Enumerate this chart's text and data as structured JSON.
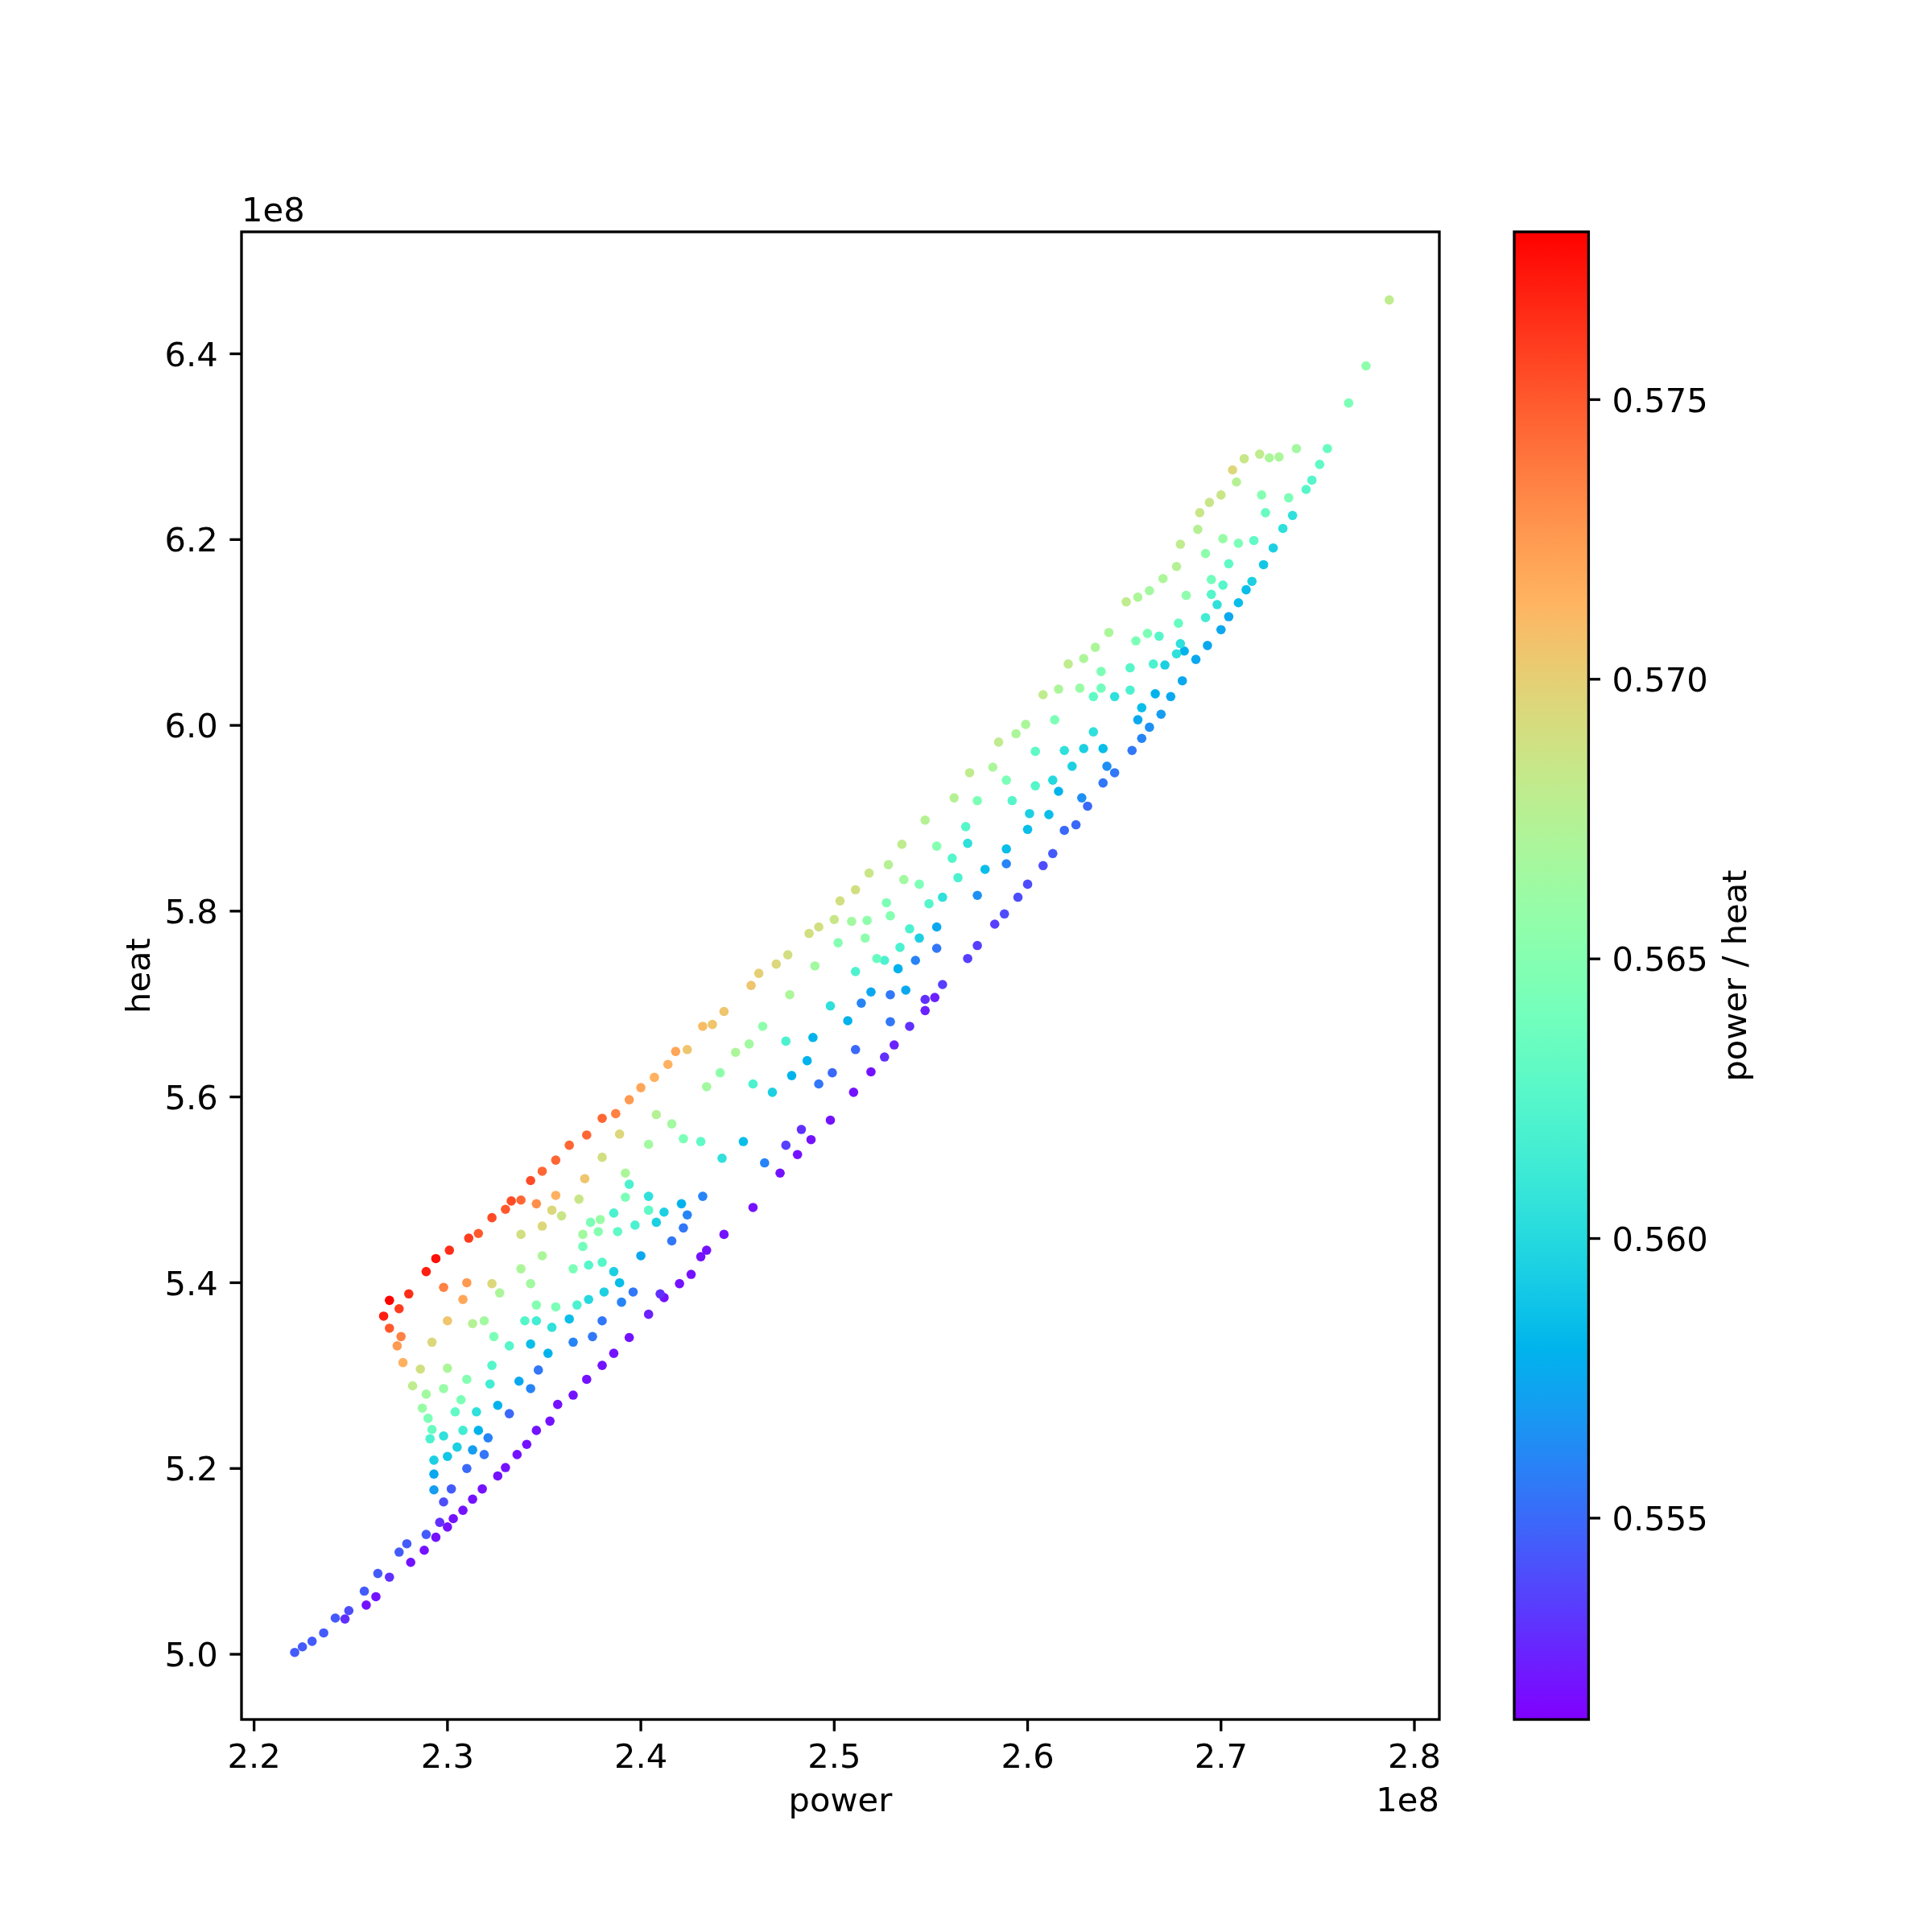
{
  "chart_data": {
    "type": "scatter",
    "xlabel": "power",
    "ylabel": "heat",
    "clabel": "power / heat",
    "annotations": [
      "1e8",
      "1e8"
    ],
    "marker": "circle",
    "xlim": [
      2.1935,
      2.8129
    ],
    "ylim": [
      4.9298,
      6.5313
    ],
    "clim": [
      0.5514,
      0.578
    ],
    "xticks": [
      2.2,
      2.3,
      2.4,
      2.5,
      2.6,
      2.7,
      2.8
    ],
    "yticks": [
      {
        "value": 5,
        "label": "5.0"
      },
      5.2,
      5.4,
      5.6,
      5.8,
      {
        "value": 6,
        "label": "6.0"
      },
      6.2,
      6.4
    ],
    "cticks": [
      0.555,
      {
        "value": 0.56,
        "label": "0.560"
      },
      0.565,
      {
        "value": 0.57,
        "label": "0.570"
      },
      0.575
    ],
    "x": [
      2.221,
      2.225,
      2.23,
      2.236,
      2.242,
      2.247,
      2.249,
      2.257,
      2.258,
      2.263,
      2.264,
      2.27,
      2.275,
      2.281,
      2.279,
      2.288,
      2.289,
      2.294,
      2.3,
      2.296,
      2.298,
      2.293,
      2.293,
      2.293,
      2.291,
      2.292,
      2.29,
      2.287,
      2.289,
      2.282,
      2.286,
      2.277,
      2.274,
      2.276,
      2.27,
      2.267,
      2.27,
      2.275,
      2.28,
      2.289,
      2.294,
      2.301,
      2.311,
      2.316,
      2.323,
      2.333,
      2.338,
      2.346,
      2.356,
      2.298,
      2.31,
      2.323,
      2.308,
      2.3,
      2.292,
      2.313,
      2.327,
      2.338,
      2.343,
      2.338,
      2.349,
      2.359,
      2.37,
      2.379,
      2.392,
      2.404,
      2.421,
      2.434,
      2.426,
      2.42,
      2.412,
      2.404,
      2.394,
      2.386,
      2.38,
      2.372,
      2.365,
      2.357,
      2.353,
      2.346,
      2.341,
      2.336,
      2.33,
      2.326,
      2.318,
      2.313,
      2.308,
      2.303,
      2.302,
      2.3,
      2.305,
      2.313,
      2.31,
      2.319,
      2.321,
      2.298,
      2.308,
      2.316,
      2.332,
      2.343,
      2.304,
      2.315,
      2.326,
      2.307,
      2.322,
      2.337,
      2.298,
      2.31,
      2.323,
      2.347,
      2.3,
      2.324,
      2.332,
      2.343,
      2.352,
      2.365,
      2.375,
      2.319,
      2.34,
      2.346,
      2.354,
      2.363,
      2.38,
      2.346,
      2.356,
      2.367,
      2.373,
      2.381,
      2.39,
      2.396,
      2.349,
      2.365,
      2.373,
      2.386,
      2.4,
      2.416,
      2.378,
      2.388,
      2.397,
      2.408,
      2.424,
      2.33,
      2.343,
      2.349,
      2.356,
      2.363,
      2.372,
      2.38,
      2.387,
      2.394,
      2.4,
      2.407,
      2.414,
      2.418,
      2.424,
      2.432,
      2.437,
      2.443,
      2.457,
      2.461,
      2.47,
      2.476,
      2.487,
      2.492,
      2.5,
      2.503,
      2.511,
      2.389,
      2.392,
      2.408,
      2.422,
      2.431,
      2.442,
      2.453,
      2.464,
      2.475,
      2.483,
      2.481,
      2.498,
      2.51,
      2.519,
      2.526,
      2.531,
      2.539,
      2.547,
      2.556,
      2.488,
      2.472,
      2.458,
      2.443,
      2.431,
      2.422,
      2.432,
      2.412,
      2.404,
      2.394,
      2.386,
      2.374,
      2.37,
      2.38,
      2.389,
      2.41,
      2.354,
      2.368,
      2.371,
      2.38,
      2.404,
      2.416,
      2.434,
      2.441,
      2.449,
      2.456,
      2.463,
      2.477,
      2.49,
      2.502,
      2.517,
      2.527,
      2.458,
      2.468,
      2.478,
      2.486,
      2.492,
      2.499,
      2.475,
      2.489,
      2.511,
      2.498,
      2.507,
      2.514,
      2.519,
      2.529,
      2.511,
      2.526,
      2.533,
      2.542,
      2.553,
      2.553,
      2.539,
      2.556,
      2.518,
      2.528,
      2.535,
      2.547,
      2.562,
      2.57,
      2.582,
      2.585,
      2.594,
      2.599,
      2.608,
      2.616,
      2.621,
      2.629,
      2.635,
      2.642,
      2.547,
      2.552,
      2.569,
      2.574,
      2.583,
      2.588,
      2.595,
      2.6,
      2.608,
      2.613,
      2.619,
      2.625,
      2.631,
      2.639,
      2.645,
      2.654,
      2.659,
      2.663,
      2.669,
      2.674,
      2.68,
      2.687,
      2.693,
      2.509,
      2.516,
      2.522,
      2.537,
      2.529,
      2.534,
      2.544,
      2.529,
      2.536,
      2.544,
      2.549,
      2.574,
      2.564,
      2.578,
      2.589,
      2.553,
      2.561,
      2.569,
      2.568,
      2.589,
      2.6,
      2.611,
      2.574,
      2.592,
      2.601,
      2.616,
      2.628,
      2.589,
      2.604,
      2.613,
      2.623,
      2.641,
      2.604,
      2.619,
      2.629,
      2.639,
      2.614,
      2.634,
      2.657,
      2.634,
      2.645,
      2.666,
      2.638,
      2.653,
      2.671,
      2.681,
      2.656,
      2.787,
      2.775,
      2.766,
      2.755,
      2.751,
      2.747,
      2.744,
      2.737,
      2.732,
      2.727,
      2.722,
      2.716,
      2.713,
      2.709,
      2.704,
      2.7,
      2.739,
      2.73,
      2.725,
      2.72,
      2.712,
      2.706,
      2.708,
      2.7,
      2.694,
      2.689,
      2.688,
      2.679,
      2.677,
      2.67,
      2.663,
      2.657,
      2.651,
      2.735,
      2.721,
      2.723,
      2.717,
      2.709,
      2.701,
      2.704,
      2.692,
      2.701,
      2.695,
      2.682,
      2.695,
      2.698,
      2.692,
      2.678,
      2.662,
      2.668,
      2.679,
      2.677,
      2.665,
      2.638,
      2.627,
      2.653,
      2.659
    ],
    "values": [
      5.002,
      5.008,
      5.014,
      5.023,
      5.039,
      5.038,
      5.047,
      5.068,
      5.053,
      5.062,
      5.087,
      5.083,
      5.11,
      5.099,
      5.119,
      5.112,
      5.129,
      5.126,
      5.137,
      5.142,
      5.164,
      5.177,
      5.194,
      5.209,
      5.232,
      5.242,
      5.254,
      5.265,
      5.28,
      5.289,
      5.307,
      5.314,
      5.332,
      5.342,
      5.351,
      5.364,
      5.381,
      5.372,
      5.388,
      5.412,
      5.426,
      5.435,
      5.448,
      5.453,
      5.47,
      5.488,
      5.489,
      5.485,
      5.494,
      5.395,
      5.4,
      5.399,
      5.382,
      5.359,
      5.336,
      5.356,
      5.389,
      5.415,
      5.399,
      5.452,
      5.461,
      5.472,
      5.452,
      5.468,
      5.492,
      5.478,
      5.485,
      5.435,
      5.409,
      5.399,
      5.384,
      5.366,
      5.341,
      5.324,
      5.311,
      5.296,
      5.279,
      5.269,
      5.251,
      5.241,
      5.226,
      5.215,
      5.201,
      5.192,
      5.178,
      5.167,
      5.155,
      5.146,
      5.178,
      5.213,
      5.223,
      5.22,
      5.2,
      5.215,
      5.233,
      5.235,
      5.241,
      5.241,
      5.259,
      5.286,
      5.261,
      5.261,
      5.268,
      5.274,
      5.291,
      5.294,
      5.286,
      5.296,
      5.311,
      5.306,
      5.308,
      5.342,
      5.332,
      5.334,
      5.324,
      5.336,
      5.342,
      5.359,
      5.359,
      5.359,
      5.352,
      5.361,
      5.359,
      5.376,
      5.374,
      5.376,
      5.382,
      5.39,
      5.379,
      5.39,
      5.429,
      5.415,
      5.419,
      5.412,
      5.429,
      5.445,
      5.455,
      5.455,
      5.462,
      5.465,
      5.473,
      5.479,
      5.51,
      5.52,
      5.532,
      5.548,
      5.559,
      5.577,
      5.582,
      5.597,
      5.61,
      5.621,
      5.635,
      5.649,
      5.651,
      5.676,
      5.678,
      5.692,
      5.72,
      5.733,
      5.743,
      5.753,
      5.776,
      5.783,
      5.791,
      5.811,
      5.823,
      5.56,
      5.518,
      5.581,
      5.555,
      5.552,
      5.534,
      5.552,
      5.529,
      5.548,
      5.565,
      5.538,
      5.575,
      5.605,
      5.627,
      5.643,
      5.656,
      5.676,
      5.705,
      5.721,
      5.554,
      5.518,
      5.481,
      5.452,
      5.428,
      5.459,
      5.493,
      5.476,
      5.493,
      5.506,
      5.475,
      5.465,
      5.439,
      5.422,
      5.4,
      5.388,
      5.478,
      5.49,
      5.512,
      5.535,
      5.549,
      5.571,
      5.611,
      5.626,
      5.648,
      5.657,
      5.676,
      5.71,
      5.741,
      5.766,
      5.79,
      5.809,
      5.614,
      5.605,
      5.623,
      5.639,
      5.614,
      5.626,
      5.66,
      5.664,
      5.651,
      5.698,
      5.682,
      5.701,
      5.713,
      5.71,
      5.735,
      5.747,
      5.738,
      5.747,
      5.76,
      5.783,
      5.781,
      5.815,
      5.841,
      5.85,
      5.872,
      5.898,
      5.922,
      5.949,
      5.955,
      5.982,
      5.991,
      6.001,
      6.033,
      6.039,
      6.066,
      6.072,
      6.084,
      6.1,
      5.693,
      5.707,
      5.749,
      5.763,
      5.786,
      5.797,
      5.815,
      5.829,
      5.849,
      5.862,
      5.887,
      5.893,
      5.913,
      5.938,
      5.949,
      5.973,
      5.986,
      5.998,
      6.012,
      6.031,
      6.048,
      6.071,
      6.086,
      5.789,
      5.771,
      5.749,
      5.715,
      5.681,
      5.761,
      5.771,
      5.795,
      5.834,
      5.829,
      5.808,
      5.817,
      5.836,
      5.845,
      5.851,
      5.87,
      5.857,
      5.873,
      5.891,
      5.867,
      5.888,
      5.904,
      5.919,
      5.919,
      5.905,
      5.929,
      5.922,
      5.941,
      5.935,
      5.941,
      5.956,
      5.956,
      5.972,
      5.973,
      5.975,
      5.975,
      6.006,
      5.993,
      6.006,
      6.031,
      6.031,
      6.034,
      6.058,
      6.062,
      6.065,
      6.08,
      6.091,
      6.458,
      6.387,
      6.347,
      6.298,
      6.281,
      6.264,
      6.254,
      6.226,
      6.212,
      6.191,
      6.173,
      6.155,
      6.146,
      6.132,
      6.117,
      6.103,
      6.298,
      6.289,
      6.288,
      6.292,
      6.287,
      6.275,
      6.262,
      6.248,
      6.24,
      6.229,
      6.211,
      6.195,
      6.171,
      6.158,
      6.145,
      6.138,
      6.133,
      6.245,
      6.248,
      6.229,
      6.199,
      6.196,
      6.201,
      6.174,
      6.185,
      6.151,
      6.157,
      6.14,
      6.141,
      6.13,
      6.116,
      6.11,
      6.099,
      6.096,
      6.088,
      6.077,
      6.066,
      6.04,
      6.04,
      6.038,
      6.019
    ],
    "cvalues": [
      0.5545,
      0.5545,
      0.5545,
      0.5545,
      0.5545,
      0.553,
      0.554,
      0.5545,
      0.552,
      0.552,
      0.5545,
      0.553,
      0.5545,
      0.552,
      0.5545,
      0.552,
      0.5545,
      0.552,
      0.552,
      0.553,
      0.554,
      0.557,
      0.5575,
      0.5595,
      0.562,
      0.5635,
      0.5645,
      0.566,
      0.5665,
      0.568,
      0.569,
      0.5715,
      0.5725,
      0.5735,
      0.575,
      0.577,
      0.578,
      0.576,
      0.5765,
      0.577,
      0.5775,
      0.5765,
      0.576,
      0.575,
      0.5755,
      0.5755,
      0.5745,
      0.573,
      0.5715,
      0.5735,
      0.5725,
      0.5695,
      0.572,
      0.5705,
      0.5695,
      0.5675,
      0.567,
      0.567,
      0.5665,
      0.569,
      0.5695,
      0.5685,
      0.5665,
      0.566,
      0.5645,
      0.563,
      0.558,
      0.552,
      0.552,
      0.552,
      0.552,
      0.5525,
      0.552,
      0.552,
      0.552,
      0.552,
      0.552,
      0.552,
      0.552,
      0.552,
      0.552,
      0.552,
      0.552,
      0.552,
      0.552,
      0.552,
      0.552,
      0.552,
      0.5545,
      0.559,
      0.5595,
      0.557,
      0.555,
      0.5555,
      0.556,
      0.5605,
      0.5615,
      0.558,
      0.555,
      0.556,
      0.563,
      0.5605,
      0.558,
      0.5645,
      0.5615,
      0.5575,
      0.566,
      0.565,
      0.5625,
      0.5555,
      0.567,
      0.5645,
      0.5625,
      0.5585,
      0.558,
      0.556,
      0.5555,
      0.5665,
      0.5625,
      0.5615,
      0.5605,
      0.5585,
      0.5555,
      0.565,
      0.5645,
      0.562,
      0.56,
      0.5595,
      0.556,
      0.5555,
      0.567,
      0.5645,
      0.5625,
      0.5595,
      0.5575,
      0.5555,
      0.565,
      0.563,
      0.562,
      0.5595,
      0.556,
      0.575,
      0.5755,
      0.5745,
      0.5745,
      0.5745,
      0.5745,
      0.5745,
      0.5735,
      0.5725,
      0.572,
      0.5715,
      0.5715,
      0.572,
      0.5705,
      0.571,
      0.5705,
      0.5705,
      0.5705,
      0.57,
      0.5695,
      0.569,
      0.569,
      0.569,
      0.5685,
      0.569,
      0.569,
      0.5695,
      0.567,
      0.5675,
      0.5645,
      0.563,
      0.5605,
      0.5585,
      0.556,
      0.5535,
      0.553,
      0.552,
      0.552,
      0.552,
      0.552,
      0.553,
      0.5525,
      0.553,
      0.553,
      0.5535,
      0.552,
      0.552,
      0.552,
      0.552,
      0.552,
      0.5555,
      0.556,
      0.5595,
      0.5605,
      0.562,
      0.562,
      0.5645,
      0.564,
      0.5625,
      0.5585,
      0.553,
      0.5695,
      0.5685,
      0.5705,
      0.569,
      0.5665,
      0.5665,
      0.5665,
      0.5655,
      0.567,
      0.5665,
      0.5655,
      0.567,
      0.5665,
      0.565,
      0.5655,
      0.5645,
      0.562,
      0.5595,
      0.558,
      0.558,
      0.5555,
      0.555,
      0.562,
      0.558,
      0.555,
      0.5605,
      0.558,
      0.556,
      0.5575,
      0.5555,
      0.562,
      0.562,
      0.558,
      0.556,
      0.5555,
      0.5575,
      0.562,
      0.5605,
      0.5685,
      0.5675,
      0.568,
      0.5675,
      0.5675,
      0.568,
      0.567,
      0.568,
      0.567,
      0.567,
      0.568,
      0.567,
      0.568,
      0.567,
      0.567,
      0.567,
      0.5525,
      0.5525,
      0.5535,
      0.5535,
      0.5535,
      0.554,
      0.554,
      0.554,
      0.554,
      0.5545,
      0.555,
      0.555,
      0.555,
      0.5555,
      0.5555,
      0.5555,
      0.556,
      0.5565,
      0.557,
      0.5575,
      0.5575,
      0.5575,
      0.5575,
      0.5665,
      0.5655,
      0.5635,
      0.5575,
      0.5555,
      0.562,
      0.5595,
      0.565,
      0.5665,
      0.5645,
      0.5625,
      0.5565,
      0.562,
      0.5585,
      0.556,
      0.565,
      0.5625,
      0.5605,
      0.5625,
      0.5585,
      0.5585,
      0.5585,
      0.5645,
      0.5625,
      0.5595,
      0.558,
      0.5565,
      0.5645,
      0.5625,
      0.56,
      0.5595,
      0.5565,
      0.563,
      0.5605,
      0.5595,
      0.5585,
      0.5645,
      0.5605,
      0.5575,
      0.563,
      0.5605,
      0.558,
      0.5645,
      0.5625,
      0.5595,
      0.558,
      0.5645,
      0.568,
      0.5655,
      0.5645,
      0.5635,
      0.563,
      0.5625,
      0.5625,
      0.5605,
      0.5605,
      0.5595,
      0.559,
      0.5595,
      0.5585,
      0.5585,
      0.5575,
      0.5575,
      0.5665,
      0.567,
      0.567,
      0.568,
      0.5685,
      0.5695,
      0.5675,
      0.5685,
      0.5685,
      0.5685,
      0.5675,
      0.568,
      0.5675,
      0.567,
      0.5665,
      0.567,
      0.568,
      0.5645,
      0.565,
      0.5635,
      0.563,
      0.5645,
      0.566,
      0.563,
      0.5655,
      0.5625,
      0.564,
      0.5655,
      0.5625,
      0.5605,
      0.5615,
      0.5635,
      0.5645,
      0.5625,
      0.5605,
      0.5605,
      0.562,
      0.564,
      0.566,
      0.562,
      0.5585
    ]
  }
}
